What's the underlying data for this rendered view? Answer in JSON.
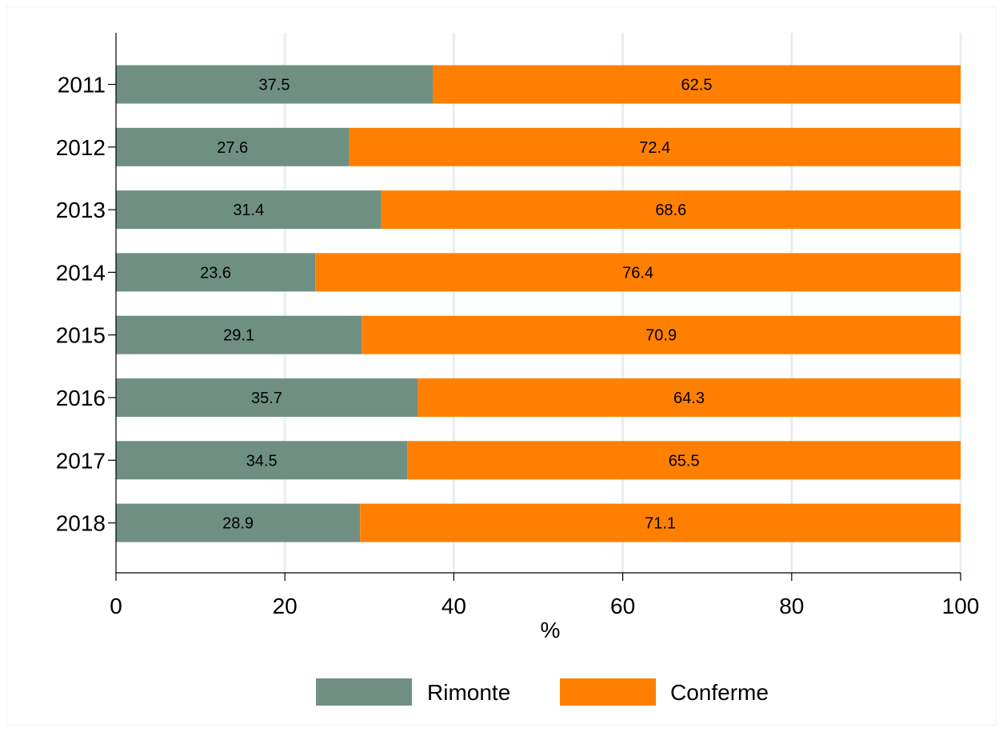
{
  "chart_data": {
    "type": "bar",
    "orientation": "horizontal",
    "stacked": true,
    "categories": [
      "2011",
      "2012",
      "2013",
      "2014",
      "2015",
      "2016",
      "2017",
      "2018"
    ],
    "series": [
      {
        "name": "Rimonte",
        "color": "#6f8f83",
        "values": [
          37.5,
          27.6,
          31.4,
          23.6,
          29.1,
          35.7,
          34.5,
          28.9
        ]
      },
      {
        "name": "Conferme",
        "color": "#ff8000",
        "values": [
          62.5,
          72.4,
          68.6,
          76.4,
          70.9,
          64.3,
          65.5,
          71.1
        ]
      }
    ],
    "xlabel": "%",
    "xlim": [
      0,
      100
    ],
    "xticks": [
      "0",
      "20",
      "40",
      "60",
      "80",
      "100"
    ],
    "grid": true,
    "grid_color": "#e6eff0",
    "legend": "bottom"
  }
}
